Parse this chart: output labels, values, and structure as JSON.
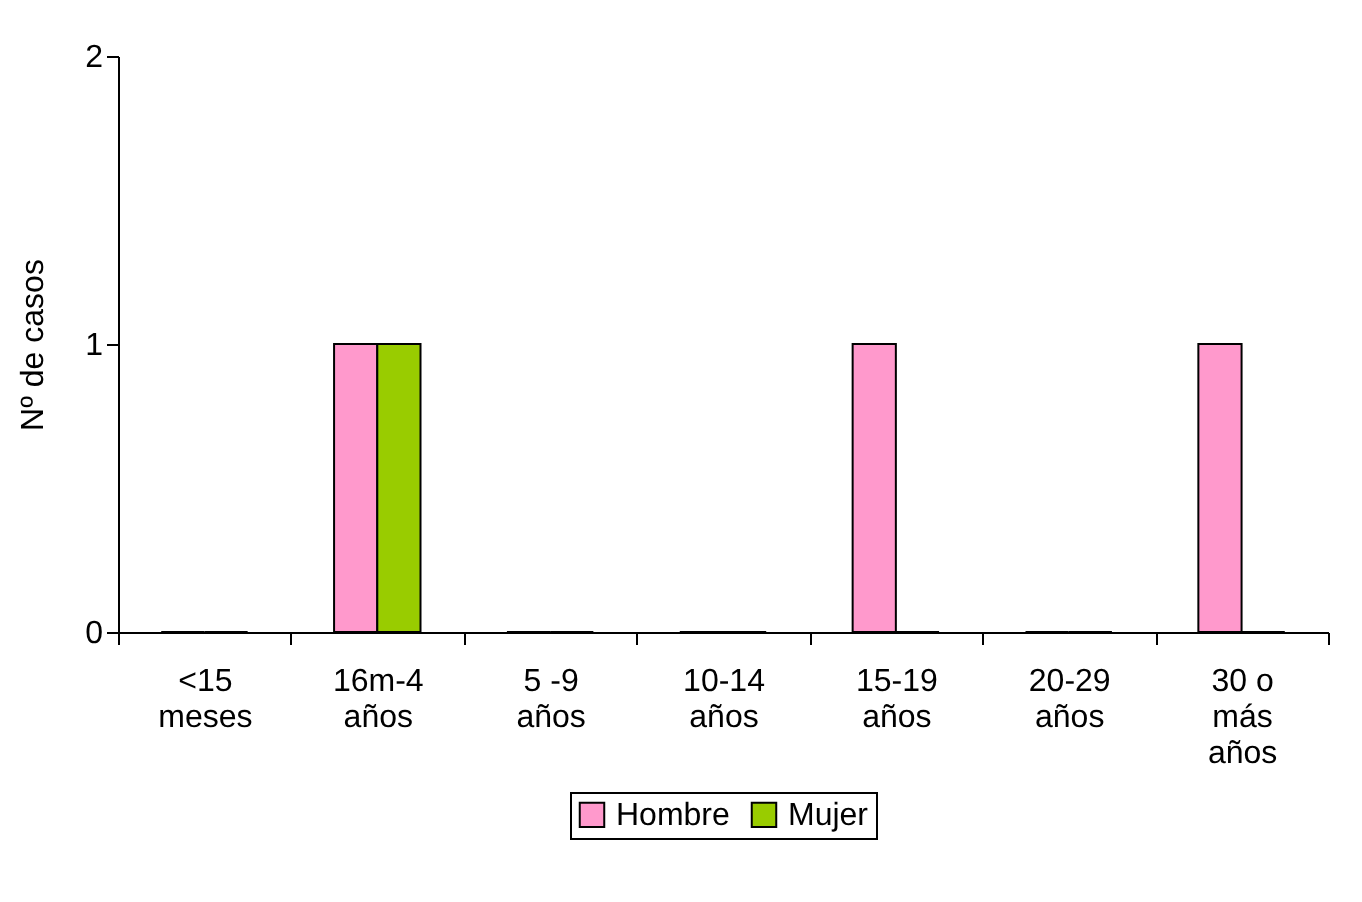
{
  "chart_data": {
    "type": "bar",
    "ylabel": "Nº de casos",
    "categories": [
      "<15\nmeses",
      "16m-4\naños",
      "5 -9\naños",
      "10-14\naños",
      "15-19\naños",
      "20-29\naños",
      "30 o\nmás\naños"
    ],
    "series": [
      {
        "name": "Hombre",
        "color": "#ff99cc",
        "values": [
          0,
          1,
          0,
          0,
          1,
          0,
          1
        ]
      },
      {
        "name": "Mujer",
        "color": "#99cc00",
        "values": [
          0,
          1,
          0,
          0,
          0,
          0,
          0
        ]
      }
    ],
    "ylim": [
      0,
      2
    ],
    "yticks": [
      0,
      1,
      2
    ],
    "grid": false,
    "legend": "bottom"
  }
}
